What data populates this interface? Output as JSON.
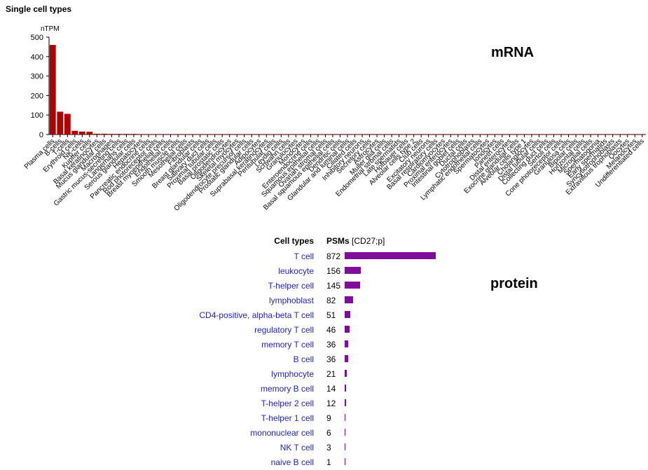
{
  "section_title": "Single cell types",
  "mrna": {
    "label": "mRNA",
    "ylabel": "nTPM",
    "bar_color": "#b30000"
  },
  "protein": {
    "label": "protein",
    "col_celltypes": "Cell types",
    "col_psm": "PSMs",
    "col_psm_unit": "[CD27;p]",
    "bar_color": "#7f0d99",
    "max": 872
  },
  "chart_data": [
    {
      "type": "bar",
      "ylabel": "nTPM",
      "ylim": [
        0,
        500
      ],
      "yticks": [
        0,
        100,
        200,
        300,
        400,
        500
      ],
      "grid": false,
      "categories": [
        "Plasma cells",
        "B-cells",
        "T-cells",
        "Erythroid cells",
        "NK-cells",
        "Kupffer cells",
        "Basal keratinocytes",
        "Mucus glandular cells",
        "Macrophages",
        "Gastric mucus-secreting cells",
        "Langerhans cells",
        "Serous glandular cells",
        "Hepatocytes",
        "Pancreatic endocrine cells",
        "Rod photoreceptor cells",
        "Breast myoepithelial cells",
        "Endothelial cells",
        "Smooth muscle cells",
        "Mesothelial cells",
        "Fibroblasts",
        "Breast glandular cells",
        "Salivary duct cells",
        "Proximal tubular cells",
        "Basal prostatic cells",
        "Oligodendrocytes",
        "Skeletal myocytes",
        "Oligodendrocyte precursor cells",
        "Prostatic glandular cells",
        "Adipocytes",
        "Suprabasal keratinocytes",
        "Peritubular cells",
        "Leydig cells",
        "Schwann cells",
        "Granulocytes",
        "Monocytes",
        "Enteroendocrine cells",
        "Squamous epithelial cells",
        "Ovarian stromal cells",
        "Basal squamous epithelial cells",
        "Dendritic cells",
        "Glandular and luminal cells",
        "Ciliated cells",
        "Inhibitory neurons",
        "Secretory cells",
        "Astrocytes",
        "Muller glia cells",
        "Endometrial stromal cells",
        "Late spermatids",
        "Hofbauer cells",
        "Alveolar cells type 2",
        "Club cells",
        "Excitatory neurons",
        "Basal respiratory cells",
        "Cardiomyocytes",
        "Proximal enterocytes",
        "Intestinal goblet cells",
        "Ductal cells",
        "Cytotrophoblasts",
        "Lymphatic endothelial cells",
        "Spermatocytes",
        "Ionocytes",
        "Paneth cells",
        "Distal enterocytes",
        "Exocrine glandular cells",
        "Alveolar cells type 1",
        "Cholangiocytes",
        "Distal tubular cells",
        "Collecting duct cells",
        "Sertoli cells",
        "Cone photoreceptor cells",
        "Granulosa cells",
        "Bipolar cells",
        "Horizontal cells",
        "Microglial cells",
        "Spermatogonia",
        "Early spermatids",
        "Syncytiotrophoblasts",
        "Extravillous trophoblasts",
        "Oocytes",
        "Melanocytes",
        "Undifferentiated cells"
      ],
      "values": [
        460,
        117,
        106,
        19,
        15,
        14,
        4,
        4,
        3,
        3,
        3,
        3,
        2,
        2,
        2,
        2,
        2,
        2,
        2,
        2,
        2,
        1,
        1,
        1,
        1,
        1,
        1,
        1,
        1,
        1,
        1,
        1,
        1,
        1,
        1,
        1,
        1,
        1,
        1,
        1,
        1,
        1,
        1,
        1,
        1,
        1,
        1,
        1,
        1,
        1,
        1,
        1,
        1,
        1,
        1,
        1,
        1,
        1,
        1,
        1,
        1,
        1,
        1,
        1,
        1,
        1,
        1,
        1,
        1,
        1,
        1,
        1,
        1,
        1,
        1,
        1,
        1,
        1,
        1,
        1,
        1
      ]
    },
    {
      "type": "bar",
      "orientation": "horizontal",
      "xlabel": "PSMs [CD27;p]",
      "categories": [
        "T cell",
        "leukocyte",
        "T-helper cell",
        "lymphoblast",
        "CD4-positive, alpha-beta T cell",
        "regulatory T cell",
        "memory T cell",
        "B cell",
        "lymphocyte",
        "memory B cell",
        "T-helper 2 cell",
        "T-helper 1 cell",
        "mononuclear cell",
        "NK T cell",
        "naive B cell"
      ],
      "values": [
        872,
        156,
        145,
        82,
        51,
        46,
        36,
        36,
        21,
        14,
        12,
        9,
        6,
        3,
        1
      ]
    }
  ]
}
